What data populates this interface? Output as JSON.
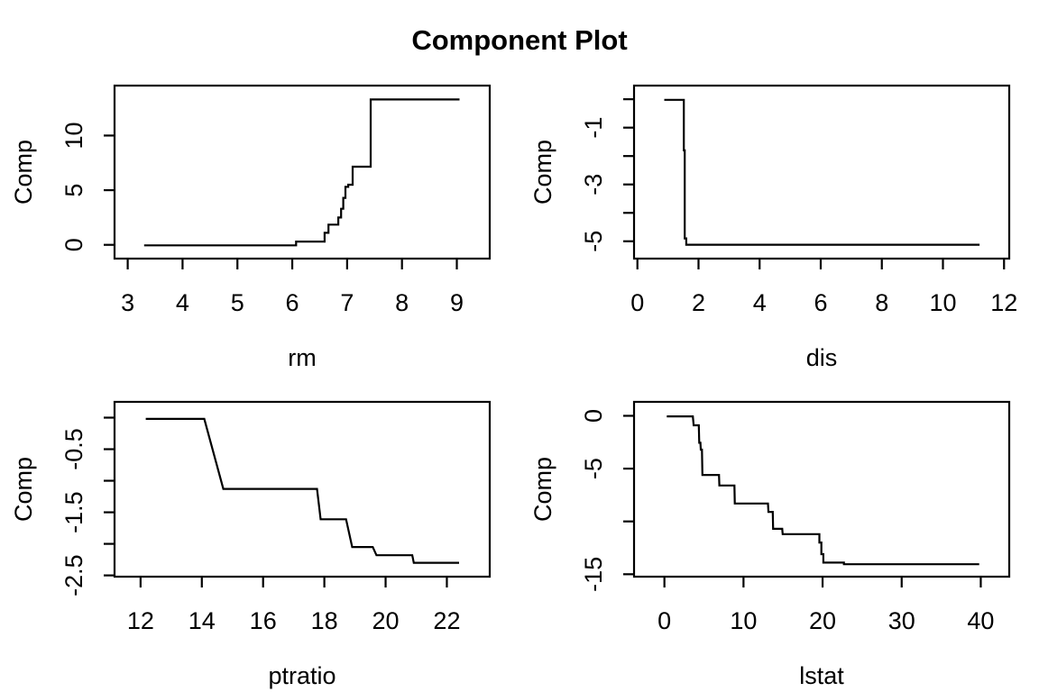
{
  "title": "Component Plot",
  "colors": {
    "line": "#000000",
    "axis": "#000000",
    "text": "#000000",
    "background": "#ffffff"
  },
  "chart_data": [
    {
      "type": "line",
      "panel": "top-left",
      "xlabel": "rm",
      "ylabel": "Comp",
      "xlim": [
        2.76,
        9.6
      ],
      "ylim": [
        -1.26,
        14.57
      ],
      "grid": false,
      "xticks": [
        3,
        4,
        5,
        6,
        7,
        8,
        9
      ],
      "xtick_labels": [
        "3",
        "4",
        "5",
        "6",
        "7",
        "8",
        "9"
      ],
      "yticks": [
        0,
        5,
        10
      ],
      "ytick_labels": [
        "0",
        "5",
        "10"
      ],
      "points": [
        [
          3.3,
          -0.05
        ],
        [
          6.07,
          -0.05
        ],
        [
          6.07,
          0.3
        ],
        [
          6.59,
          0.3
        ],
        [
          6.59,
          1.1
        ],
        [
          6.66,
          1.1
        ],
        [
          6.66,
          1.85
        ],
        [
          6.84,
          1.85
        ],
        [
          6.84,
          2.5
        ],
        [
          6.89,
          2.5
        ],
        [
          6.89,
          3.3
        ],
        [
          6.93,
          3.3
        ],
        [
          6.93,
          4.3
        ],
        [
          6.97,
          4.3
        ],
        [
          6.97,
          5.3
        ],
        [
          7.02,
          5.3
        ],
        [
          7.02,
          5.5
        ],
        [
          7.1,
          5.5
        ],
        [
          7.1,
          7.15
        ],
        [
          7.43,
          7.15
        ],
        [
          7.43,
          13.3
        ],
        [
          9.05,
          13.3
        ]
      ]
    },
    {
      "type": "line",
      "panel": "top-right",
      "xlabel": "dis",
      "ylabel": "Comp",
      "xlim": [
        -0.11,
        12.17
      ],
      "ylim": [
        -5.61,
        0.48
      ],
      "grid": false,
      "xticks": [
        0,
        2,
        4,
        6,
        8,
        10,
        12
      ],
      "xtick_labels": [
        "0",
        "2",
        "4",
        "6",
        "8",
        "10",
        "12"
      ],
      "yticks": [
        0,
        -1,
        -2,
        -3,
        -4,
        -5
      ],
      "ytick_labels": [
        "",
        "-1",
        "",
        "-3",
        "",
        "-5"
      ],
      "points": [
        [
          0.88,
          -0.02
        ],
        [
          1.52,
          -0.02
        ],
        [
          1.52,
          -1.8
        ],
        [
          1.55,
          -1.8
        ],
        [
          1.55,
          -4.9
        ],
        [
          1.6,
          -4.9
        ],
        [
          1.6,
          -5.12
        ],
        [
          11.2,
          -5.12
        ]
      ]
    },
    {
      "type": "line",
      "panel": "bottom-left",
      "xlabel": "ptratio",
      "ylabel": "Comp",
      "xlim": [
        11.15,
        23.4
      ],
      "ylim": [
        -2.52,
        0.25
      ],
      "grid": false,
      "xticks": [
        12,
        14,
        16,
        18,
        20,
        22
      ],
      "xtick_labels": [
        "12",
        "14",
        "16",
        "18",
        "20",
        "22"
      ],
      "yticks": [
        0,
        -0.5,
        -1,
        -1.5,
        -2,
        -2.5
      ],
      "ytick_labels": [
        "",
        "-0.5",
        "",
        "-1.5",
        "",
        "-2.5"
      ],
      "points": [
        [
          12.17,
          -0.02
        ],
        [
          14.08,
          -0.02
        ],
        [
          14.7,
          -1.13
        ],
        [
          17.76,
          -1.13
        ],
        [
          17.88,
          -1.61
        ],
        [
          18.71,
          -1.61
        ],
        [
          18.91,
          -2.05
        ],
        [
          19.58,
          -2.05
        ],
        [
          19.7,
          -2.18
        ],
        [
          20.87,
          -2.18
        ],
        [
          20.92,
          -2.3
        ],
        [
          22.4,
          -2.3
        ]
      ]
    },
    {
      "type": "line",
      "panel": "bottom-right",
      "xlabel": "lstat",
      "ylabel": "Comp",
      "xlim": [
        -3.84,
        43.6
      ],
      "ylim": [
        -15.23,
        1.32
      ],
      "grid": false,
      "xticks": [
        0,
        10,
        20,
        30,
        40
      ],
      "xtick_labels": [
        "0",
        "10",
        "20",
        "30",
        "40"
      ],
      "yticks": [
        0,
        -5,
        -10,
        -15
      ],
      "ytick_labels": [
        "0",
        "-5",
        "",
        "-15"
      ],
      "points": [
        [
          0.3,
          -0.05
        ],
        [
          3.6,
          -0.05
        ],
        [
          3.7,
          -0.9
        ],
        [
          4.35,
          -0.9
        ],
        [
          4.4,
          -2.55
        ],
        [
          4.55,
          -2.55
        ],
        [
          4.6,
          -3.2
        ],
        [
          4.75,
          -3.2
        ],
        [
          4.8,
          -5.6
        ],
        [
          6.9,
          -5.6
        ],
        [
          6.95,
          -6.6
        ],
        [
          8.85,
          -6.6
        ],
        [
          8.9,
          -8.3
        ],
        [
          13.1,
          -8.3
        ],
        [
          13.15,
          -9.1
        ],
        [
          13.7,
          -9.1
        ],
        [
          13.75,
          -10.7
        ],
        [
          14.9,
          -10.7
        ],
        [
          14.95,
          -11.2
        ],
        [
          19.6,
          -11.2
        ],
        [
          19.6,
          -12.0
        ],
        [
          19.85,
          -12.0
        ],
        [
          19.85,
          -13.1
        ],
        [
          20.1,
          -13.1
        ],
        [
          20.1,
          -13.9
        ],
        [
          22.7,
          -13.9
        ],
        [
          22.7,
          -14.05
        ],
        [
          39.8,
          -14.05
        ]
      ]
    }
  ]
}
